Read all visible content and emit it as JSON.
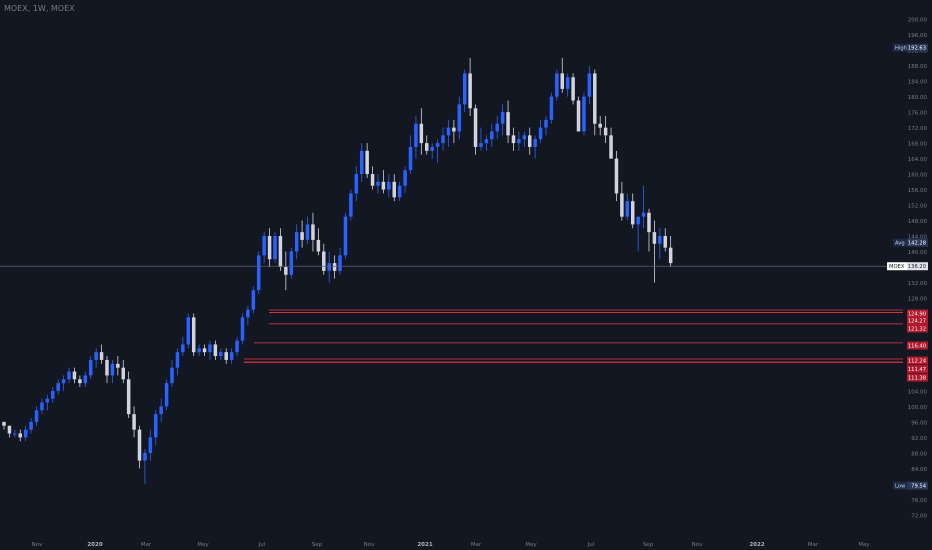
{
  "symbol_title": "MOEX, 1W, MOEX",
  "chart_data": {
    "type": "candlestick",
    "title": "MOEX, 1W, MOEX",
    "y_axis": {
      "ticks": [
        72,
        76,
        80,
        84,
        88,
        92,
        96,
        100,
        104,
        108,
        112,
        116,
        120,
        124,
        128,
        132,
        136,
        140,
        144,
        148,
        152,
        156,
        160,
        164,
        168,
        172,
        176,
        180,
        184,
        188,
        192,
        196,
        200
      ],
      "tick_labels": [
        "72.00",
        "76.00",
        "80.00",
        "84.00",
        "88.00",
        "92.00",
        "96.00",
        "100.00",
        "104.00",
        "108.00",
        "112.00",
        "116.00",
        "120.00",
        "124.00",
        "128.00",
        "132.00",
        "136.00",
        "140.00",
        "144.00",
        "148.00",
        "152.00",
        "156.00",
        "160.00",
        "164.00",
        "168.00",
        "172.00",
        "176.00",
        "180.00",
        "184.00",
        "188.00",
        "192.00",
        "196.00",
        "200.00"
      ],
      "range": [
        70.4,
        201.6
      ],
      "position": "right"
    },
    "x_axis": {
      "tick_labels": [
        "Nov",
        "2020",
        "Mar",
        "May",
        "Jul",
        "Sep",
        "Nov",
        "2021",
        "Mar",
        "May",
        "Jul",
        "Sep",
        "Nov",
        "2022",
        "Mar",
        "May"
      ],
      "bold_labels": [
        "2020",
        "2021",
        "2022"
      ]
    },
    "series": [
      {
        "name": "MOEX",
        "first_date": "2019-10-25",
        "interval": "1W",
        "ohlc": [
          [
            96,
            96,
            94,
            95
          ],
          [
            95,
            95,
            92,
            93
          ],
          [
            93,
            94,
            92,
            93
          ],
          [
            93,
            94,
            91,
            92
          ],
          [
            92,
            95,
            91,
            94
          ],
          [
            94,
            97,
            93,
            96
          ],
          [
            96,
            100,
            95,
            99
          ],
          [
            99,
            102,
            98,
            101
          ],
          [
            101,
            103,
            99,
            102
          ],
          [
            102,
            105,
            101,
            104
          ],
          [
            104,
            107,
            103,
            106
          ],
          [
            106,
            108,
            104,
            107
          ],
          [
            107,
            110,
            106,
            109
          ],
          [
            109,
            110,
            106,
            107
          ],
          [
            107,
            108,
            105,
            106
          ],
          [
            106,
            109,
            105,
            108
          ],
          [
            108,
            113,
            107,
            112
          ],
          [
            112,
            115,
            110,
            114
          ],
          [
            114,
            116,
            111,
            112
          ],
          [
            112,
            113,
            106,
            108
          ],
          [
            108,
            112,
            106,
            111
          ],
          [
            111,
            113,
            108,
            110
          ],
          [
            110,
            112,
            106,
            107
          ],
          [
            107,
            109,
            97,
            98
          ],
          [
            98,
            100,
            92,
            94
          ],
          [
            94,
            95,
            84,
            86
          ],
          [
            86,
            89,
            80,
            88
          ],
          [
            88,
            94,
            86,
            92
          ],
          [
            92,
            99,
            90,
            98
          ],
          [
            98,
            102,
            96,
            100
          ],
          [
            100,
            107,
            99,
            106
          ],
          [
            106,
            112,
            105,
            110
          ],
          [
            110,
            115,
            108,
            114
          ],
          [
            114,
            118,
            113,
            116
          ],
          [
            116,
            124,
            115,
            123
          ],
          [
            123,
            124,
            113,
            114
          ],
          [
            114,
            116,
            113,
            115
          ],
          [
            115,
            116,
            113,
            114
          ],
          [
            114,
            117,
            112,
            116
          ],
          [
            116,
            117,
            112,
            113
          ],
          [
            113,
            115,
            112,
            114
          ],
          [
            114,
            115,
            111,
            112
          ],
          [
            112,
            115,
            111,
            114
          ],
          [
            114,
            118,
            113,
            117
          ],
          [
            117,
            124,
            116,
            123
          ],
          [
            123,
            126,
            121,
            125
          ],
          [
            125,
            131,
            124,
            130
          ],
          [
            130,
            140,
            129,
            139
          ],
          [
            139,
            145,
            137,
            144
          ],
          [
            144,
            146,
            136,
            138
          ],
          [
            138,
            145,
            137,
            144
          ],
          [
            144,
            146,
            135,
            136
          ],
          [
            136,
            140,
            130,
            134
          ],
          [
            134,
            141,
            133,
            140
          ],
          [
            140,
            147,
            138,
            145
          ],
          [
            145,
            148,
            141,
            143
          ],
          [
            143,
            149,
            142,
            147
          ],
          [
            147,
            150,
            140,
            143
          ],
          [
            143,
            146,
            139,
            140
          ],
          [
            140,
            142,
            134,
            135
          ],
          [
            135,
            140,
            132,
            137
          ],
          [
            137,
            139,
            133,
            135
          ],
          [
            135,
            141,
            134,
            139
          ],
          [
            139,
            150,
            138,
            149
          ],
          [
            149,
            156,
            148,
            155
          ],
          [
            155,
            162,
            153,
            160
          ],
          [
            160,
            168,
            158,
            166
          ],
          [
            166,
            168,
            159,
            160
          ],
          [
            160,
            162,
            156,
            157
          ],
          [
            157,
            160,
            155,
            158
          ],
          [
            158,
            161,
            155,
            156
          ],
          [
            156,
            160,
            154,
            158
          ],
          [
            158,
            160,
            153,
            154
          ],
          [
            154,
            158,
            153,
            157
          ],
          [
            157,
            162,
            155,
            161
          ],
          [
            161,
            170,
            160,
            167
          ],
          [
            167,
            175,
            164,
            173
          ],
          [
            173,
            177,
            165,
            168
          ],
          [
            168,
            170,
            165,
            166
          ],
          [
            166,
            168,
            164,
            167
          ],
          [
            167,
            169,
            163,
            168
          ],
          [
            168,
            172,
            166,
            170
          ],
          [
            170,
            174,
            167,
            172
          ],
          [
            172,
            174,
            168,
            171
          ],
          [
            171,
            180,
            169,
            178
          ],
          [
            178,
            187,
            176,
            186
          ],
          [
            186,
            190,
            175,
            177
          ],
          [
            177,
            178,
            165,
            167
          ],
          [
            167,
            172,
            166,
            168
          ],
          [
            168,
            170,
            166,
            169
          ],
          [
            169,
            173,
            167,
            171
          ],
          [
            171,
            175,
            169,
            173
          ],
          [
            173,
            178,
            170,
            176
          ],
          [
            176,
            179,
            168,
            170
          ],
          [
            170,
            172,
            166,
            168
          ],
          [
            168,
            171,
            166,
            169
          ],
          [
            169,
            171,
            167,
            170
          ],
          [
            170,
            172,
            165,
            167
          ],
          [
            167,
            170,
            164,
            169
          ],
          [
            169,
            174,
            168,
            172
          ],
          [
            172,
            175,
            170,
            174
          ],
          [
            174,
            181,
            173,
            180
          ],
          [
            180,
            187,
            179,
            186
          ],
          [
            186,
            190,
            181,
            182
          ],
          [
            182,
            186,
            180,
            185
          ],
          [
            185,
            186,
            178,
            179
          ],
          [
            179,
            180,
            171,
            171
          ],
          [
            171,
            181,
            170,
            180
          ],
          [
            180,
            188,
            178,
            186
          ],
          [
            186,
            187,
            170,
            173
          ],
          [
            173,
            175,
            170,
            172
          ],
          [
            172,
            175,
            168,
            170
          ],
          [
            170,
            172,
            164,
            164
          ],
          [
            164,
            166,
            153,
            155
          ],
          [
            155,
            158,
            148,
            149
          ],
          [
            149,
            155,
            148,
            153
          ],
          [
            153,
            155,
            146,
            147
          ],
          [
            147,
            149,
            140,
            149
          ],
          [
            149,
            157,
            146,
            150
          ],
          [
            150,
            151,
            140,
            145
          ],
          [
            145,
            148,
            132,
            142
          ],
          [
            142,
            146,
            138,
            144
          ],
          [
            144,
            146,
            140,
            141
          ],
          [
            141,
            144,
            136,
            137
          ]
        ]
      }
    ],
    "levels": [
      {
        "price": 124.9,
        "label": "124.90"
      },
      {
        "price": 124.27,
        "label": "124.27"
      },
      {
        "price": 121.32,
        "label": "121.32"
      },
      {
        "price": 116.4,
        "label": "116.40"
      },
      {
        "price": 112.24,
        "label": "112.24"
      },
      {
        "price": 111.47,
        "label": "111.47"
      },
      {
        "price": 111.38,
        "label": "111.38"
      }
    ],
    "markers": [
      {
        "name": "High",
        "price": 192.63,
        "label": "192.63"
      },
      {
        "name": "Avg",
        "price": 142.28,
        "label": "142.28"
      },
      {
        "name": "Low",
        "price": 79.54,
        "label": "79.54"
      }
    ],
    "last_price": {
      "name": "MOEX",
      "price": 136.2,
      "label": "136.20"
    },
    "colors": {
      "background": "#131722",
      "up": "#2962ff",
      "down": "#d1d4dc",
      "level": "#f23645",
      "level_label_bg": "#b2182b",
      "marker_label_bg": "#1e2a4a",
      "axis_text": "#787b86",
      "last_price_line": "#5d606b"
    },
    "grid": false
  }
}
